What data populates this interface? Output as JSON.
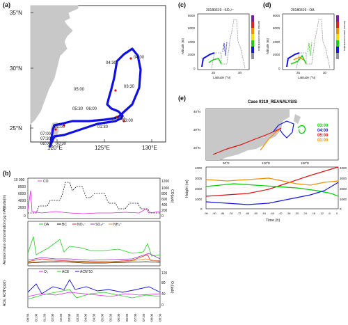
{
  "panel_a": {
    "label": "(a)",
    "lat_ticks": [
      "35°N",
      "30°N",
      "25°N"
    ],
    "lon_ticks": [
      "120°E",
      "125°E",
      "130°E"
    ],
    "time_labels": [
      "04:00",
      "04:30",
      "03:30",
      "05:00",
      "05:30",
      "06:00",
      "02:30",
      "03:00",
      "01:30",
      "01:00",
      "07:00",
      "07:30",
      "08:00",
      "00:30"
    ],
    "colors": {
      "land": "#c8c8c8",
      "track": "#1010e0",
      "marker": "#e01010"
    }
  },
  "panel_b": {
    "label": "(b)",
    "top": {
      "ylabel_left": "Altitude(m)",
      "ylabel_right": "CO(ppb)",
      "left_ticks": [
        "10 000",
        "8000",
        "6000",
        "4000",
        "2000",
        "0"
      ],
      "right_ticks": [
        "1200",
        "1000",
        "800",
        "600",
        "400",
        "200",
        "0"
      ],
      "legend": "CO"
    },
    "middle": {
      "ylabel_left": "Aerosol mass concentration (μg m⁻³)",
      "legend": [
        "OA",
        "BC",
        "NO₃⁻",
        "SO₄²⁻",
        "NH₄⁺"
      ]
    },
    "bottom": {
      "ylabel_left": "ACE, ACN*(ppb)",
      "ylabel_right": "O₃(ppb)",
      "right_ticks": [
        "120",
        "80",
        "40",
        "0"
      ],
      "legend": [
        "O₃",
        "ACE",
        "ACN*10"
      ]
    },
    "x_ticks": [
      "00:30",
      "01:00",
      "01:30",
      "02:00",
      "02:30",
      "03:00",
      "03:30",
      "04:00",
      "04:30",
      "05:00",
      "05:30",
      "06:00",
      "06:30",
      "07:00",
      "07:30",
      "08:00",
      "08:30"
    ]
  },
  "panel_c": {
    "label": "(c)",
    "title": "20180319 : SO₄²⁻",
    "ylabel": "Altitude (m)",
    "xlabel": "Latitude (°N)",
    "cbar_label": "Aerosol mass concentration",
    "y_ticks": [
      "8000",
      "6000",
      "4000",
      "2000",
      "0"
    ],
    "x_ticks": [
      "25",
      "30"
    ]
  },
  "panel_d": {
    "label": "(d)",
    "title": "20180319 : OA",
    "ylabel": "Altitude (m)",
    "xlabel": "Latitude (°N)",
    "cbar_label": "Aerosol mass concentration",
    "y_ticks": [
      "8000",
      "6000",
      "4000",
      "2000",
      "0"
    ],
    "x_ticks": [
      "25",
      "30"
    ]
  },
  "panel_e": {
    "label": "(e)",
    "title": "Case 0319_REANALYSIS",
    "lat_ticks": [
      "40°N",
      "30°N",
      "20°N"
    ],
    "lon_ticks": [
      "90°E",
      "120°E",
      "150°E"
    ],
    "legend": [
      {
        "label": "03:00",
        "color": "#00cc00"
      },
      {
        "label": "04:00",
        "color": "#1515e0"
      },
      {
        "label": "05:00",
        "color": "#e01010"
      },
      {
        "label": "01:00",
        "color": "#f09000"
      }
    ],
    "ylabel": "Height (m)",
    "xlabel": "Time (h)",
    "y_ticks": [
      "4000",
      "3000",
      "2000",
      "1000",
      "0"
    ],
    "x_ticks": [
      "-96",
      "-90",
      "-84",
      "-78",
      "-72",
      "-66",
      "-60",
      "-54",
      "-48",
      "-42",
      "-36",
      "-30",
      "-24",
      "-18",
      "-12",
      "-6",
      "0"
    ]
  }
}
